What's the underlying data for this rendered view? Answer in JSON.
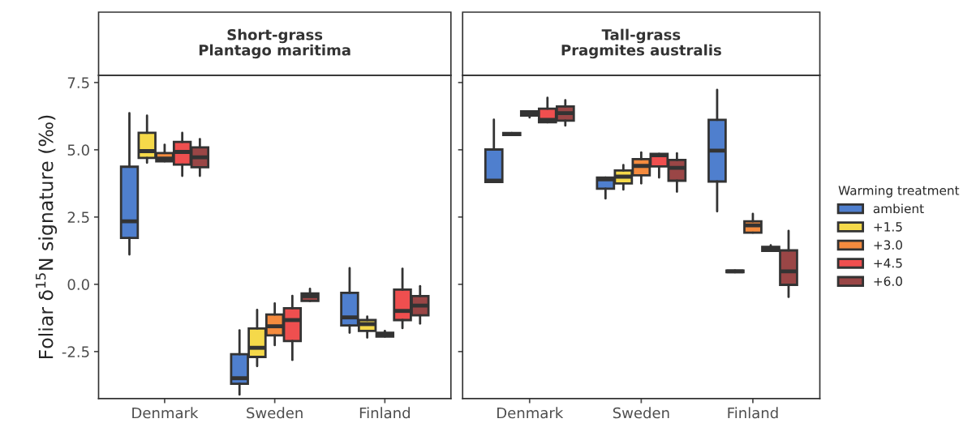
{
  "chart_data": [
    {
      "type": "box",
      "title": "Short-grass\nPlantago maritima",
      "ylabel": "Foliar δ$^{15}$N signature (‰)",
      "categories": [
        "Denmark",
        "Sweden",
        "Finland"
      ],
      "ylim": [
        -4.25,
        7.77
      ],
      "yticks": [
        {
          "value": -2.5,
          "label": "-2.5"
        },
        {
          "value": 0,
          "label": "0.0"
        },
        {
          "value": 2.5,
          "label": "2.5"
        },
        {
          "value": 5,
          "label": "5.0"
        },
        {
          "value": 7.5,
          "label": "7.5"
        }
      ],
      "series": [
        {
          "color": "#4f7fce",
          "boxes": [
            {
              "low": 1.11,
              "q1": 1.72,
              "median": 2.34,
              "q3": 4.37,
              "high": 6.36
            },
            {
              "low": -4.1,
              "q1": -3.7,
              "median": -3.49,
              "q3": -2.6,
              "high": -1.71
            },
            {
              "low": -1.8,
              "q1": -1.53,
              "median": -1.23,
              "q3": -0.32,
              "high": 0.6
            }
          ]
        },
        {
          "color": "#f5d94a",
          "boxes": [
            {
              "low": 4.52,
              "q1": 4.7,
              "median": 4.95,
              "q3": 5.63,
              "high": 6.27
            },
            {
              "low": -3.04,
              "q1": -2.7,
              "median": -2.36,
              "q3": -1.64,
              "high": -0.95
            },
            {
              "low": -1.98,
              "q1": -1.73,
              "median": -1.48,
              "q3": -1.33,
              "high": -1.2
            }
          ]
        },
        {
          "color": "#f58b3e",
          "boxes": [
            {
              "low": 4.57,
              "q1": 4.57,
              "median": 4.67,
              "q3": 4.88,
              "high": 5.19
            },
            {
              "low": -2.26,
              "q1": -1.9,
              "median": -1.56,
              "q3": -1.12,
              "high": -0.71
            },
            {
              "low": -1.94,
              "q1": -1.94,
              "median": -1.86,
              "q3": -1.8,
              "high": -1.73
            }
          ]
        },
        {
          "color": "#ef4f4f",
          "boxes": [
            {
              "low": 4.03,
              "q1": 4.45,
              "median": 4.92,
              "q3": 5.29,
              "high": 5.63
            },
            {
              "low": -2.81,
              "q1": -2.11,
              "median": -1.33,
              "q3": -0.89,
              "high": -0.43
            },
            {
              "low": -1.63,
              "q1": -1.33,
              "median": -0.99,
              "q3": -0.2,
              "high": 0.58
            }
          ]
        },
        {
          "color": "#9a4646",
          "boxes": [
            {
              "low": 4.03,
              "q1": 4.35,
              "median": 4.72,
              "q3": 5.09,
              "high": 5.4
            },
            {
              "low": -0.62,
              "q1": -0.62,
              "median": -0.44,
              "q3": -0.34,
              "high": -0.17
            },
            {
              "low": -1.46,
              "q1": -1.15,
              "median": -0.79,
              "q3": -0.44,
              "high": -0.07
            }
          ]
        }
      ]
    },
    {
      "type": "box",
      "title": "Tall-grass\nPragmites australis",
      "legend_title": "Warming treatment",
      "legend": "right",
      "tick_labels": "x",
      "categories": [
        "Denmark",
        "Sweden",
        "Finland"
      ],
      "ylim": [
        -4.25,
        7.77
      ],
      "yticks": [
        {
          "value": -2.5,
          "label": null
        },
        {
          "value": 0,
          "label": null
        },
        {
          "value": 2.5,
          "label": null
        },
        {
          "value": 5,
          "label": null
        },
        {
          "value": 7.5,
          "label": null
        }
      ],
      "series": [
        {
          "name": "ambient",
          "color": "#4f7fce",
          "boxes": [
            {
              "low": 3.8,
              "q1": 3.8,
              "median": 3.85,
              "q3": 5.01,
              "high": 6.12
            },
            {
              "low": 3.19,
              "q1": 3.55,
              "median": 3.9,
              "q3": 3.97,
              "high": 3.97
            },
            {
              "low": 2.71,
              "q1": 3.82,
              "median": 4.97,
              "q3": 6.11,
              "high": 7.23
            }
          ]
        },
        {
          "name": "+1.5",
          "color": "#f5d94a",
          "boxes": [
            {
              "low": 5.55,
              "q1": 5.55,
              "median": 5.58,
              "q3": 5.62,
              "high": 5.62
            },
            {
              "low": 3.52,
              "q1": 3.75,
              "median": 4.0,
              "q3": 4.23,
              "high": 4.43
            },
            {
              "low": 0.45,
              "q1": 0.45,
              "median": 0.48,
              "q3": 0.51,
              "high": 0.51
            }
          ]
        },
        {
          "name": "+3.0",
          "color": "#f58b3e",
          "boxes": [
            {
              "low": 6.2,
              "q1": 6.27,
              "median": 6.36,
              "q3": 6.43,
              "high": 6.43
            },
            {
              "low": 3.75,
              "q1": 4.05,
              "median": 4.4,
              "q3": 4.65,
              "high": 4.9
            },
            {
              "low": 1.92,
              "q1": 1.92,
              "median": 2.19,
              "q3": 2.34,
              "high": 2.62
            }
          ]
        },
        {
          "name": "+4.5",
          "color": "#ef4f4f",
          "boxes": [
            {
              "low": 6.02,
              "q1": 6.02,
              "median": 6.11,
              "q3": 6.53,
              "high": 6.93
            },
            {
              "low": 3.97,
              "q1": 4.38,
              "median": 4.8,
              "q3": 4.85,
              "high": 4.85
            },
            {
              "low": 1.24,
              "q1": 1.24,
              "median": 1.32,
              "q3": 1.39,
              "high": 1.45
            }
          ]
        },
        {
          "name": "+6.0",
          "color": "#9a4646",
          "boxes": [
            {
              "low": 5.9,
              "q1": 6.08,
              "median": 6.36,
              "q3": 6.61,
              "high": 6.84
            },
            {
              "low": 3.44,
              "q1": 3.85,
              "median": 4.33,
              "q3": 4.62,
              "high": 4.87
            },
            {
              "low": -0.47,
              "q1": -0.02,
              "median": 0.48,
              "q3": 1.26,
              "high": 1.99
            }
          ]
        }
      ]
    }
  ]
}
